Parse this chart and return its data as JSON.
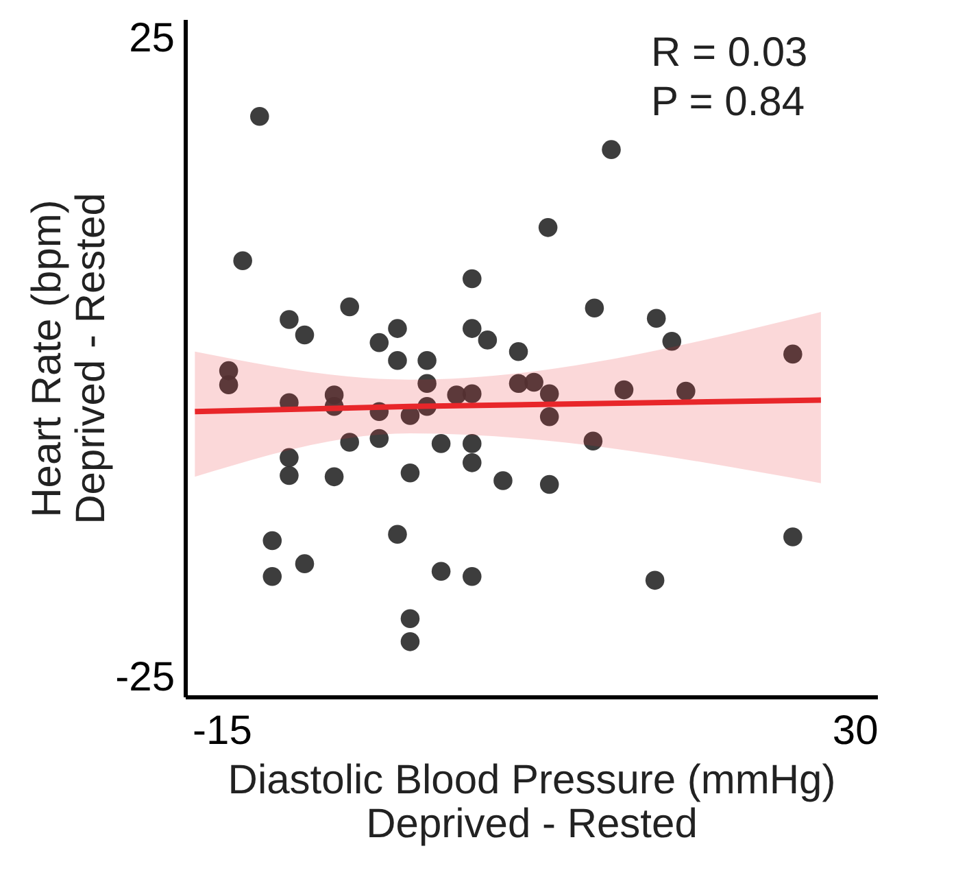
{
  "chart_data": {
    "type": "scatter",
    "xlabel": "Diastolic Blood Pressure (mmHg)\nDeprived - Rested",
    "ylabel": "Heart Rate (bpm)\nDeprived - Rested",
    "annotations": [
      "R = 0.03",
      "P = 0.84"
    ],
    "xlim": [
      -17.6,
      31.6
    ],
    "ylim": [
      -26.5,
      26.5
    ],
    "xticks": [
      -15,
      30
    ],
    "yticks": [
      -25,
      25
    ],
    "grid": false,
    "series": [
      {
        "marker": "circle",
        "color": "#333333",
        "x": [
          -12.3,
          -13.5,
          -10.2,
          -9.1,
          -5.9,
          -3.8,
          -2.5,
          2.8,
          2.8,
          3.9,
          6.1,
          8.2,
          12.7,
          11.5,
          15.9,
          17.0,
          25.6,
          -14.5,
          -14.5,
          -10.2,
          -10.2,
          -10.2,
          -7.0,
          -7.0,
          -5.9,
          -7.0,
          -3.8,
          -3.8,
          -2.5,
          -1.6,
          -0.4,
          -0.4,
          -0.4,
          0.6,
          -1.6,
          1.7,
          2.8,
          2.8,
          2.8,
          5.0,
          6.1,
          7.2,
          8.3,
          8.3,
          8.3,
          -11.4,
          -11.4,
          -9.1,
          -2.5,
          0.6,
          2.8,
          -1.6,
          -1.6,
          13.6,
          18.0,
          11.4,
          25.6,
          15.8
        ],
        "values": [
          18.9,
          7.6,
          3.0,
          1.8,
          4.0,
          1.2,
          2.3,
          6.2,
          2.3,
          1.4,
          0.5,
          10.2,
          16.3,
          3.9,
          3.1,
          1.3,
          0.3,
          -1.0,
          -2.1,
          -3.5,
          -7.8,
          -9.2,
          -2.9,
          -3.8,
          -6.6,
          -9.3,
          -4.2,
          -6.3,
          -0.2,
          -4.5,
          -0.2,
          -2.0,
          -3.8,
          -6.7,
          -9.0,
          -2.9,
          -2.8,
          -6.7,
          -8.2,
          -9.6,
          -2.0,
          -1.9,
          -2.8,
          -4.6,
          -9.9,
          -14.3,
          -17.1,
          -16.1,
          -13.8,
          -16.7,
          -17.1,
          -20.4,
          -22.2,
          -2.5,
          -2.6,
          -6.5,
          -14.0,
          -17.4
        ]
      },
      {
        "type": "line",
        "marker": "none",
        "color": "#e8262a",
        "x": [
          -16.9,
          -1.6,
          27.6
        ],
        "values": [
          -4.2,
          -3.8,
          -3.3
        ],
        "lower": [
          -9.3,
          -5.9,
          -9.8
        ],
        "upper": [
          0.5,
          -1.7,
          3.6
        ]
      }
    ]
  }
}
